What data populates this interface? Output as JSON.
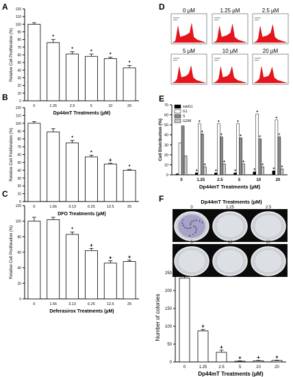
{
  "panel_letters": {
    "A": "A",
    "B": "B",
    "C": "C",
    "D": "D",
    "E": "E",
    "F": "F"
  },
  "chart_data": [
    {
      "id": "A",
      "type": "bar",
      "categories": [
        "0",
        "1.25",
        "2.5",
        "5",
        "10",
        "20"
      ],
      "values": [
        100,
        76,
        61,
        58,
        55,
        43
      ],
      "errors": [
        2,
        4,
        3,
        3,
        2,
        3
      ],
      "marks": [
        "",
        "*",
        "*",
        "*",
        "*",
        "*"
      ],
      "xlabel": "Dp44mT Treatments (µM)",
      "ylabel": "Relative Cell Proliferation (%)",
      "ylim": [
        0,
        120
      ],
      "yticks": [
        0,
        10,
        20,
        30,
        40,
        50,
        60,
        70,
        80,
        90,
        100,
        110,
        120
      ]
    },
    {
      "id": "B",
      "type": "bar",
      "categories": [
        "0",
        "1.56",
        "3.13",
        "6.25",
        "12.5",
        "25"
      ],
      "values": [
        100,
        89,
        75,
        57,
        48,
        40
      ],
      "errors": [
        2,
        4,
        3,
        2,
        1,
        1
      ],
      "marks": [
        "",
        "",
        "*",
        "*",
        "+",
        "*"
      ],
      "xlabel": "DFO Treatments (µM)",
      "ylabel": "Relative Cell Proliferation (%)",
      "ylim": [
        0,
        120
      ],
      "yticks": [
        0,
        10,
        20,
        30,
        40,
        50,
        60,
        70,
        80,
        90,
        100,
        110,
        120
      ]
    },
    {
      "id": "C",
      "type": "bar",
      "categories": [
        "0",
        "1.56",
        "3.13",
        "6.25",
        "12.5",
        "25"
      ],
      "values": [
        100,
        102,
        83,
        62,
        46,
        48
      ],
      "errors": [
        5,
        3,
        3,
        3,
        3,
        2
      ],
      "marks": [
        "",
        "",
        "*",
        "+",
        "+",
        "+"
      ],
      "xlabel": "Deferasirox Treatments (µM)",
      "ylabel": "Relative Cell Proliferation (%)",
      "ylim": [
        0,
        120
      ],
      "yticks": [
        0,
        20,
        40,
        60,
        80,
        100,
        120
      ]
    },
    {
      "id": "E",
      "type": "bar",
      "categories": [
        "0",
        "1.25",
        "2.5",
        "5",
        "10",
        "20"
      ],
      "series": [
        {
          "name": "subG1",
          "color": "#000000",
          "values": [
            1,
            2,
            2,
            2,
            3,
            4
          ],
          "marks": [
            "",
            "+",
            "+",
            "+",
            "+",
            "+"
          ]
        },
        {
          "name": "G1",
          "color": "#ffffff",
          "values": [
            32,
            51,
            51,
            51,
            61,
            55
          ],
          "marks": [
            "",
            "+",
            "+",
            "+",
            "+",
            "+"
          ]
        },
        {
          "name": "S",
          "color": "#8a8a8a",
          "values": [
            49,
            41,
            38,
            37,
            36,
            38
          ],
          "marks": [
            "",
            "+",
            "+",
            "+",
            "+",
            "+"
          ]
        },
        {
          "name": "G2/M",
          "color": "#c8c8c8",
          "values": [
            19,
            8,
            11,
            11,
            8,
            6
          ],
          "marks": [
            "",
            "+",
            "+",
            "+",
            "+",
            "+"
          ]
        }
      ],
      "xlabel": "Dp44mT Treatments (µM)",
      "ylabel": "Cell Distribution (%)",
      "ylim": [
        0,
        70
      ],
      "yticks": [
        0,
        10,
        20,
        30,
        40,
        50,
        60,
        70
      ],
      "legend": "top-left"
    },
    {
      "id": "F",
      "type": "bar",
      "categories": [
        "0",
        "1.25",
        "2.5",
        "5",
        "10",
        "20"
      ],
      "values": [
        235,
        87,
        27,
        2,
        3,
        4
      ],
      "errors": [
        7,
        4,
        6,
        1,
        1,
        1
      ],
      "marks": [
        "",
        "+",
        "+",
        "+",
        "+",
        "+"
      ],
      "xlabel": "Dp44mT Treatments (µM)",
      "ylabel": "Number of colonies",
      "ylim": [
        0,
        250
      ],
      "yticks": [
        0,
        50,
        100,
        150,
        200,
        250
      ]
    }
  ],
  "panelD": {
    "labels": [
      "0 µM",
      "1.25 µM",
      "2.5 µM",
      "5 µM",
      "10 µM",
      "20 µM"
    ],
    "histogram_color": "#e8141b"
  },
  "panelF_dishes": {
    "title": "Dp44mT Treatments (µM)",
    "top_labels": [
      "0",
      "1.25",
      "2.5"
    ],
    "bottom_labels": [
      "5",
      "10",
      "20"
    ]
  }
}
